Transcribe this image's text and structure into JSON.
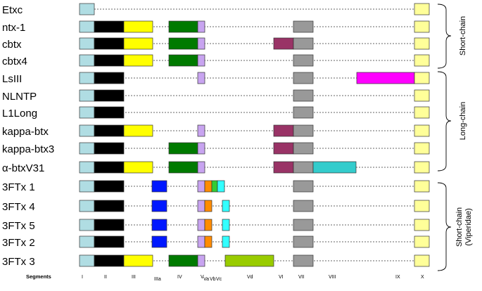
{
  "segment_axis_label": "Segments",
  "segments": [
    "I",
    "II",
    "III",
    "IIIa",
    "IV",
    "V",
    "Va",
    "Vb",
    "Vc",
    "Vd",
    "VI",
    "VII",
    "VIII",
    "IX",
    "X"
  ],
  "colors": {
    "I": "#b0dde3",
    "II": "#000000",
    "III": "#ffff00",
    "IIIa": "#0018ff",
    "IV": "#007a00",
    "V": "#c8a4f0",
    "Va": "#ff8c00",
    "Vb": "#33cc33",
    "Vc": "#33ffff",
    "Vd": "#99cc00",
    "VI": "#993366",
    "VII": "#999999",
    "VIII": "#33cccc",
    "IX": "#ff00ff",
    "X": "#ffff99"
  },
  "rows": [
    {
      "name": "Etxc",
      "segments": [
        "I",
        "X"
      ]
    },
    {
      "name": "ntx-1",
      "segments": [
        "I",
        "II",
        "III",
        "IV",
        "V",
        "VII",
        "X"
      ]
    },
    {
      "name": "cbtx",
      "segments": [
        "I",
        "II",
        "III",
        "IV",
        "V",
        "VI",
        "VII",
        "X"
      ]
    },
    {
      "name": "cbtx4",
      "segments": [
        "I",
        "II",
        "III",
        "IV",
        "V",
        "VII",
        "X"
      ]
    },
    {
      "name": "LsIII",
      "segments": [
        "I",
        "II",
        "V",
        "VII",
        "IX",
        "X"
      ]
    },
    {
      "name": "NLNTP",
      "segments": [
        "I",
        "II",
        "VII",
        "X"
      ]
    },
    {
      "name": "L1Long",
      "segments": [
        "I",
        "II",
        "VII",
        "X"
      ]
    },
    {
      "name": "kappa-btx",
      "segments": [
        "I",
        "II",
        "III",
        "V",
        "VI",
        "VII",
        "X"
      ]
    },
    {
      "name": "kappa-btx3",
      "segments": [
        "I",
        "II",
        "IV",
        "V",
        "VI",
        "VII",
        "X"
      ]
    },
    {
      "name": "α-btxV31",
      "segments": [
        "I",
        "II",
        "III",
        "IV",
        "V",
        "VI",
        "VII",
        "VIII",
        "X"
      ]
    },
    {
      "name": "3FTx 1",
      "segments": [
        "I",
        "II",
        "IIIa",
        "V",
        "Va",
        "Vb",
        "Vc",
        "VII",
        "X"
      ]
    },
    {
      "name": "3FTx 4",
      "segments": [
        "I",
        "II",
        "IIIa",
        "V",
        "Va",
        "Vc",
        "VII",
        "X"
      ]
    },
    {
      "name": "3FTx 5",
      "segments": [
        "I",
        "II",
        "IIIa",
        "V",
        "Va",
        "Vc",
        "VII",
        "X"
      ]
    },
    {
      "name": "3FTx 2",
      "segments": [
        "I",
        "II",
        "IIIa",
        "V",
        "Va",
        "Vc",
        "VII",
        "X"
      ]
    },
    {
      "name": "3FTx 3",
      "segments": [
        "I",
        "II",
        "III",
        "IV",
        "V",
        "Vd",
        "VII",
        "X"
      ]
    }
  ],
  "groups": [
    {
      "label": "Short-chain"
    },
    {
      "label": "Long-chain"
    },
    {
      "label": "Short-chain (Viperidae)"
    }
  ]
}
